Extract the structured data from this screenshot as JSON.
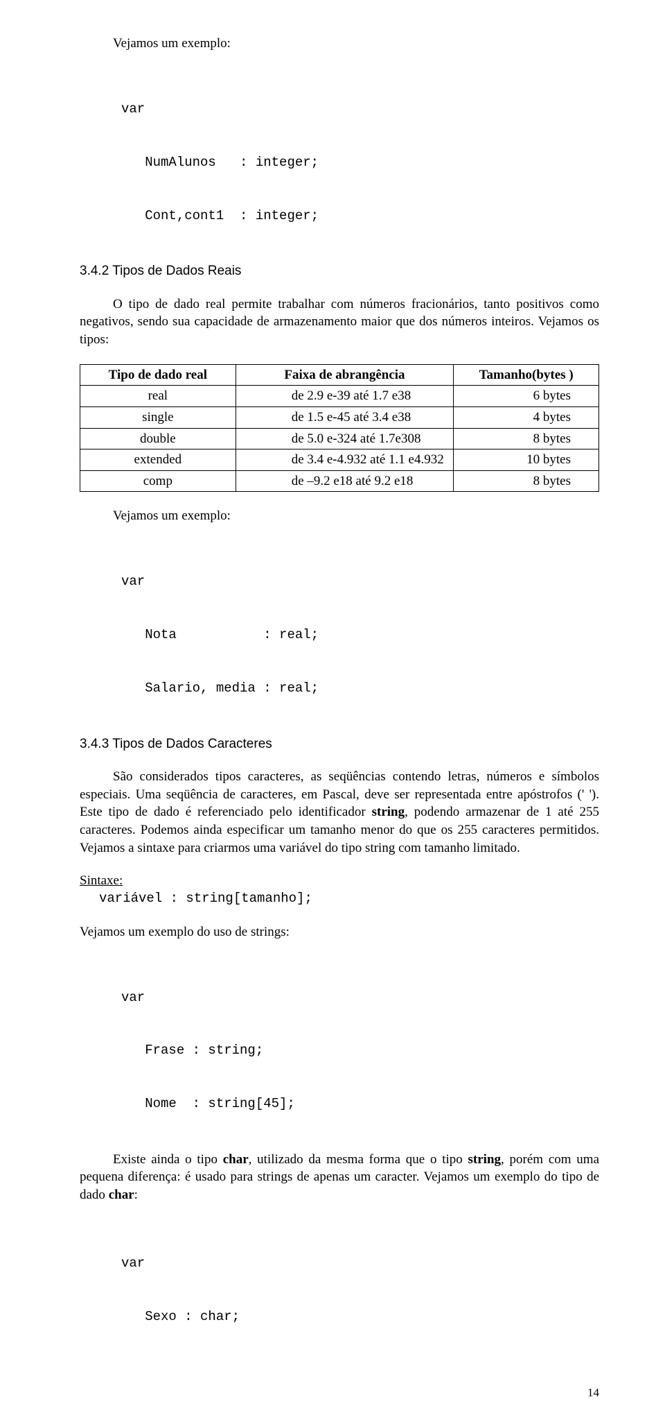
{
  "intro_example_label": "Vejamos um exemplo:",
  "code1": {
    "l1": "var",
    "l2": "   NumAlunos   : integer;",
    "l3": "   Cont,cont1  : integer;"
  },
  "section342": {
    "heading": "3.4.2  Tipos de Dados Reais",
    "para": "O tipo de dado real permite trabalhar com números fracionários, tanto positivos como negativos, sendo sua capacidade de armazenamento maior que dos números inteiros. Vejamos os tipos:"
  },
  "table_real": {
    "headers": [
      "Tipo de dado real",
      "Faixa de abrangência",
      "Tamanho(bytes )"
    ],
    "col_widths": [
      "30%",
      "42%",
      "28%"
    ],
    "rows": [
      [
        "real",
        "de 2.9 e-39 até 1.7 e38",
        "6 bytes"
      ],
      [
        "single",
        "de 1.5 e-45 até 3.4 e38",
        "4 bytes"
      ],
      [
        "double",
        "de 5.0 e-324 até 1.7e308",
        "8 bytes"
      ],
      [
        "extended",
        "de 3.4 e-4.932 até 1.1 e4.932",
        "10  bytes"
      ],
      [
        "comp",
        "de –9.2 e18 até 9.2 e18",
        "8 bytes"
      ]
    ]
  },
  "example2_label": "Vejamos um exemplo:",
  "code2": {
    "l1": "var",
    "l2": "   Nota           : real;",
    "l3": "   Salario, media : real;"
  },
  "section343": {
    "heading": "3.4.3  Tipos de Dados Caracteres",
    "para_parts": {
      "p1a": "São considerados tipos caracteres, as seqüências contendo letras, números e símbolos especiais. Uma seqüência de caracteres, em Pascal, deve ser representada entre apóstrofos (' '). Este tipo de dado é referenciado pelo identificador ",
      "p1b": "string",
      "p1c": ", podendo armazenar de 1 até 255 caracteres. Podemos ainda especificar um tamanho menor do que os 255  caracteres permitidos. Vejamos a sintaxe para criarmos uma variável do tipo string com tamanho limitado."
    }
  },
  "syntax": {
    "label": "Sintaxe:",
    "line": "variável : string[tamanho];"
  },
  "strings_example_label": "Vejamos um exemplo do uso de strings:",
  "code3": {
    "l1": "var",
    "l2": "   Frase : string;",
    "l3": "   Nome  : string[45];"
  },
  "char_para": {
    "a": "Existe ainda o tipo ",
    "b": "char",
    "c": ", utilizado da mesma forma que o tipo ",
    "d": "string",
    "e": ", porém com uma pequena diferença: é usado para strings de apenas um caracter. Vejamos um exemplo do tipo de dado ",
    "f": "char",
    "g": ":"
  },
  "code4": {
    "l1": "var",
    "l2": "   Sexo : char;"
  },
  "page_number": "14"
}
